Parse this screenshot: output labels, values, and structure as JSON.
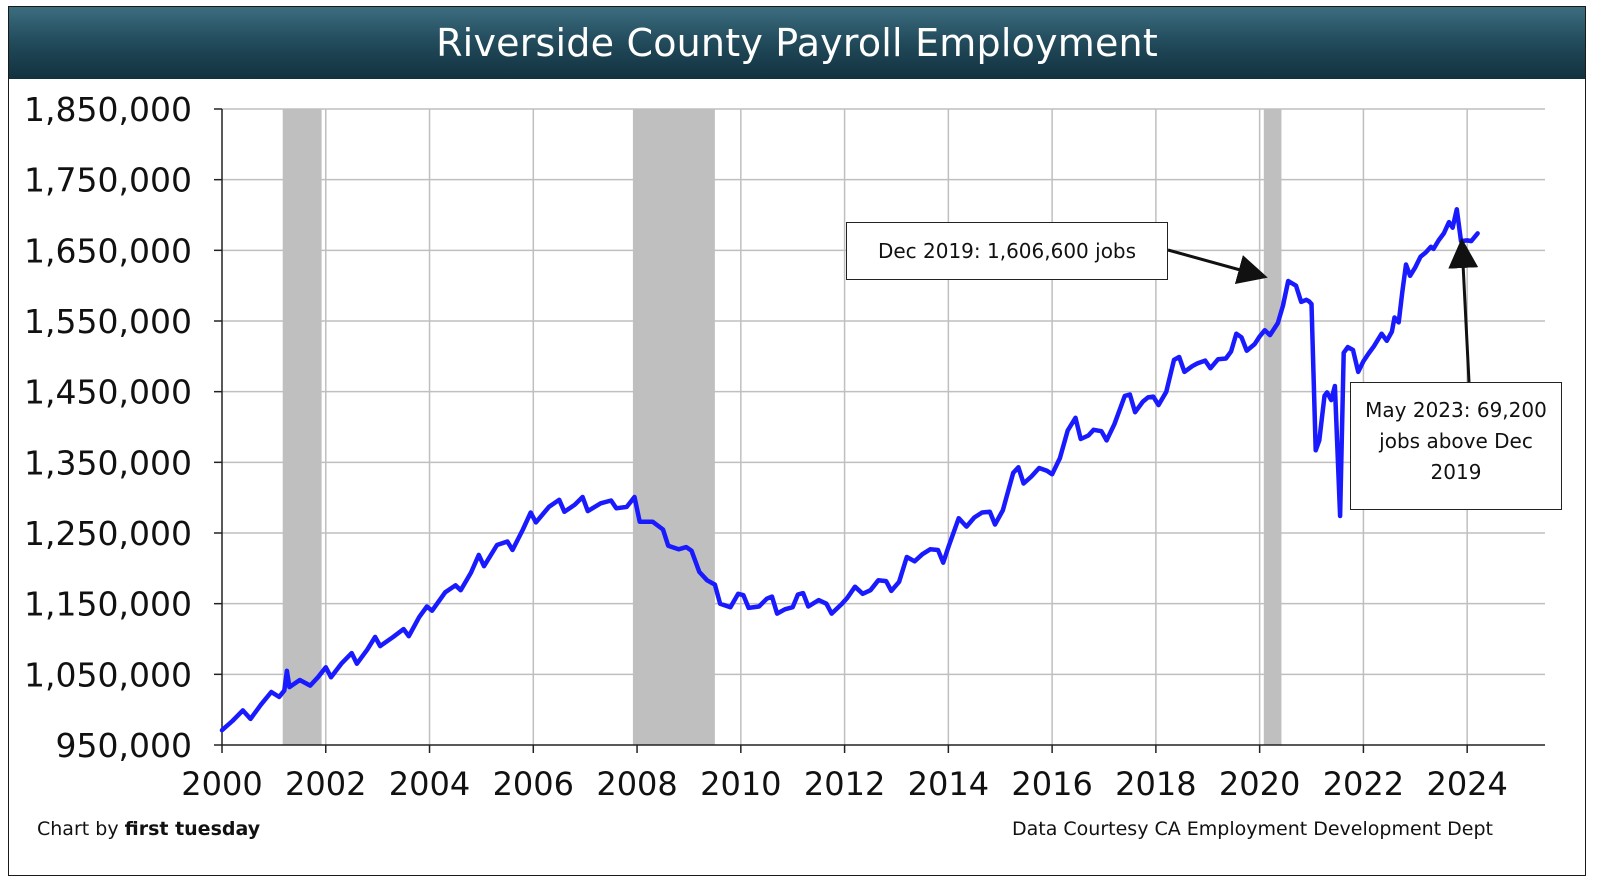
{
  "title": "Riverside County Payroll Employment",
  "footer": {
    "credit_prefix": "Chart by ",
    "credit_name": "first tuesday",
    "source": "Data Courtesy CA Employment Development Dept"
  },
  "annotations": {
    "dec_2019": "Dec 2019: 1,606,600 jobs",
    "may_2023": "May 2023: 69,200\njobs above Dec\n2019"
  },
  "colors": {
    "line": "#1a1aff",
    "recession": "#bfbfbf",
    "grid": "#bfbfbf",
    "title_bar": "#214a5a"
  },
  "chart_data": {
    "type": "line",
    "title": "Riverside County Payroll Employment",
    "xlabel": "",
    "ylabel": "",
    "xlim": [
      2000,
      2025
    ],
    "ylim": [
      950000,
      1850000
    ],
    "x_ticks": [
      "2000",
      "2002",
      "2004",
      "2006",
      "2008",
      "2010",
      "2012",
      "2014",
      "2016",
      "2018",
      "2020",
      "2022",
      "2024"
    ],
    "y_ticks": [
      "950,000",
      "1,050,000",
      "1,150,000",
      "1,250,000",
      "1,350,000",
      "1,450,000",
      "1,550,000",
      "1,650,000",
      "1,750,000",
      "1,850,000"
    ],
    "grid": true,
    "recessions": [
      [
        2001.17,
        2001.92
      ],
      [
        2007.92,
        2009.5
      ],
      [
        2020.08,
        2020.42
      ]
    ],
    "series": [
      {
        "values": [
          [
            2000.0,
            971000
          ],
          [
            2000.2,
            984000
          ],
          [
            2000.4,
            999000
          ],
          [
            2000.55,
            987000
          ],
          [
            2000.75,
            1007000
          ],
          [
            2000.95,
            1025000
          ],
          [
            2001.1,
            1018000
          ],
          [
            2001.2,
            1027000
          ],
          [
            2001.25,
            1055000
          ],
          [
            2001.3,
            1032000
          ],
          [
            2001.5,
            1042000
          ],
          [
            2001.7,
            1034000
          ],
          [
            2001.85,
            1046000
          ],
          [
            2002.0,
            1060000
          ],
          [
            2002.1,
            1046000
          ],
          [
            2002.3,
            1065000
          ],
          [
            2002.5,
            1080000
          ],
          [
            2002.6,
            1065000
          ],
          [
            2002.8,
            1085000
          ],
          [
            2002.95,
            1103000
          ],
          [
            2003.05,
            1090000
          ],
          [
            2003.3,
            1103000
          ],
          [
            2003.5,
            1114000
          ],
          [
            2003.6,
            1104000
          ],
          [
            2003.8,
            1131000
          ],
          [
            2003.95,
            1146000
          ],
          [
            2004.05,
            1140000
          ],
          [
            2004.3,
            1166000
          ],
          [
            2004.5,
            1176000
          ],
          [
            2004.6,
            1169000
          ],
          [
            2004.8,
            1194000
          ],
          [
            2004.95,
            1219000
          ],
          [
            2005.05,
            1203000
          ],
          [
            2005.3,
            1233000
          ],
          [
            2005.5,
            1238000
          ],
          [
            2005.6,
            1226000
          ],
          [
            2005.8,
            1255000
          ],
          [
            2005.95,
            1279000
          ],
          [
            2006.05,
            1265000
          ],
          [
            2006.3,
            1287000
          ],
          [
            2006.5,
            1297000
          ],
          [
            2006.6,
            1280000
          ],
          [
            2006.8,
            1290000
          ],
          [
            2006.95,
            1301000
          ],
          [
            2007.05,
            1281000
          ],
          [
            2007.3,
            1292000
          ],
          [
            2007.5,
            1296000
          ],
          [
            2007.6,
            1285000
          ],
          [
            2007.8,
            1287000
          ],
          [
            2007.95,
            1301000
          ],
          [
            2008.05,
            1266000
          ],
          [
            2008.3,
            1266000
          ],
          [
            2008.5,
            1255000
          ],
          [
            2008.6,
            1232000
          ],
          [
            2008.8,
            1227000
          ],
          [
            2008.95,
            1230000
          ],
          [
            2009.05,
            1225000
          ],
          [
            2009.2,
            1195000
          ],
          [
            2009.35,
            1183000
          ],
          [
            2009.5,
            1177000
          ],
          [
            2009.6,
            1150000
          ],
          [
            2009.8,
            1145000
          ],
          [
            2009.95,
            1164000
          ],
          [
            2010.05,
            1162000
          ],
          [
            2010.15,
            1144000
          ],
          [
            2010.35,
            1146000
          ],
          [
            2010.5,
            1157000
          ],
          [
            2010.6,
            1160000
          ],
          [
            2010.7,
            1136000
          ],
          [
            2010.85,
            1142000
          ],
          [
            2011.0,
            1145000
          ],
          [
            2011.1,
            1163000
          ],
          [
            2011.2,
            1165000
          ],
          [
            2011.3,
            1146000
          ],
          [
            2011.5,
            1155000
          ],
          [
            2011.65,
            1150000
          ],
          [
            2011.75,
            1136000
          ],
          [
            2011.95,
            1150000
          ],
          [
            2012.05,
            1158000
          ],
          [
            2012.2,
            1174000
          ],
          [
            2012.35,
            1164000
          ],
          [
            2012.5,
            1169000
          ],
          [
            2012.65,
            1183000
          ],
          [
            2012.8,
            1182000
          ],
          [
            2012.9,
            1168000
          ],
          [
            2013.05,
            1181000
          ],
          [
            2013.2,
            1216000
          ],
          [
            2013.35,
            1210000
          ],
          [
            2013.5,
            1220000
          ],
          [
            2013.65,
            1227000
          ],
          [
            2013.8,
            1226000
          ],
          [
            2013.9,
            1208000
          ],
          [
            2014.0,
            1230000
          ],
          [
            2014.2,
            1271000
          ],
          [
            2014.35,
            1259000
          ],
          [
            2014.5,
            1272000
          ],
          [
            2014.65,
            1279000
          ],
          [
            2014.8,
            1280000
          ],
          [
            2014.9,
            1262000
          ],
          [
            2015.05,
            1282000
          ],
          [
            2015.25,
            1335000
          ],
          [
            2015.35,
            1343000
          ],
          [
            2015.45,
            1320000
          ],
          [
            2015.6,
            1330000
          ],
          [
            2015.75,
            1342000
          ],
          [
            2015.9,
            1338000
          ],
          [
            2016.0,
            1333000
          ],
          [
            2016.15,
            1356000
          ],
          [
            2016.3,
            1395000
          ],
          [
            2016.45,
            1413000
          ],
          [
            2016.55,
            1383000
          ],
          [
            2016.7,
            1388000
          ],
          [
            2016.8,
            1396000
          ],
          [
            2016.95,
            1394000
          ],
          [
            2017.05,
            1381000
          ],
          [
            2017.2,
            1404000
          ],
          [
            2017.4,
            1444000
          ],
          [
            2017.5,
            1446000
          ],
          [
            2017.6,
            1421000
          ],
          [
            2017.75,
            1436000
          ],
          [
            2017.85,
            1442000
          ],
          [
            2017.95,
            1443000
          ],
          [
            2018.05,
            1431000
          ],
          [
            2018.2,
            1450000
          ],
          [
            2018.35,
            1495000
          ],
          [
            2018.45,
            1499000
          ],
          [
            2018.55,
            1478000
          ],
          [
            2018.7,
            1486000
          ],
          [
            2018.8,
            1490000
          ],
          [
            2018.95,
            1494000
          ],
          [
            2019.05,
            1483000
          ],
          [
            2019.2,
            1496000
          ],
          [
            2019.35,
            1497000
          ],
          [
            2019.45,
            1507000
          ],
          [
            2019.55,
            1532000
          ],
          [
            2019.65,
            1527000
          ],
          [
            2019.75,
            1508000
          ],
          [
            2019.9,
            1517000
          ],
          [
            2020.0,
            1528000
          ],
          [
            2020.1,
            1537000
          ],
          [
            2020.2,
            1530000
          ],
          [
            2020.35,
            1547000
          ],
          [
            2020.45,
            1572000
          ],
          [
            2020.55,
            1606600
          ],
          [
            2020.7,
            1600000
          ],
          [
            2020.8,
            1577000
          ],
          [
            2020.9,
            1580000
          ],
          [
            2020.95,
            1578000
          ],
          [
            2021.0,
            1574000
          ],
          [
            2021.08,
            1367000
          ],
          [
            2021.15,
            1381000
          ],
          [
            2021.25,
            1444000
          ],
          [
            2021.3,
            1449000
          ],
          [
            2021.38,
            1438000
          ],
          [
            2021.45,
            1458000
          ],
          [
            2021.55,
            1274000
          ],
          [
            2021.62,
            1505000
          ],
          [
            2021.7,
            1513000
          ],
          [
            2021.8,
            1509000
          ],
          [
            2021.9,
            1478000
          ],
          [
            2022.0,
            1493000
          ],
          [
            2022.1,
            1504000
          ],
          [
            2022.2,
            1514000
          ],
          [
            2022.35,
            1532000
          ],
          [
            2022.45,
            1522000
          ],
          [
            2022.55,
            1535000
          ],
          [
            2022.6,
            1555000
          ],
          [
            2022.68,
            1548000
          ],
          [
            2022.75,
            1591000
          ],
          [
            2022.82,
            1630000
          ],
          [
            2022.9,
            1614000
          ],
          [
            2023.0,
            1626000
          ],
          [
            2023.1,
            1641000
          ],
          [
            2023.2,
            1647000
          ],
          [
            2023.3,
            1655000
          ],
          [
            2023.35,
            1652000
          ],
          [
            2023.45,
            1664000
          ],
          [
            2023.55,
            1674000
          ],
          [
            2023.65,
            1690000
          ],
          [
            2023.72,
            1682000
          ],
          [
            2023.8,
            1708000
          ],
          [
            2023.88,
            1663000
          ],
          [
            2024.0,
            1664000
          ],
          [
            2024.08,
            1663000
          ],
          [
            2024.2,
            1674000
          ]
        ]
      }
    ]
  }
}
